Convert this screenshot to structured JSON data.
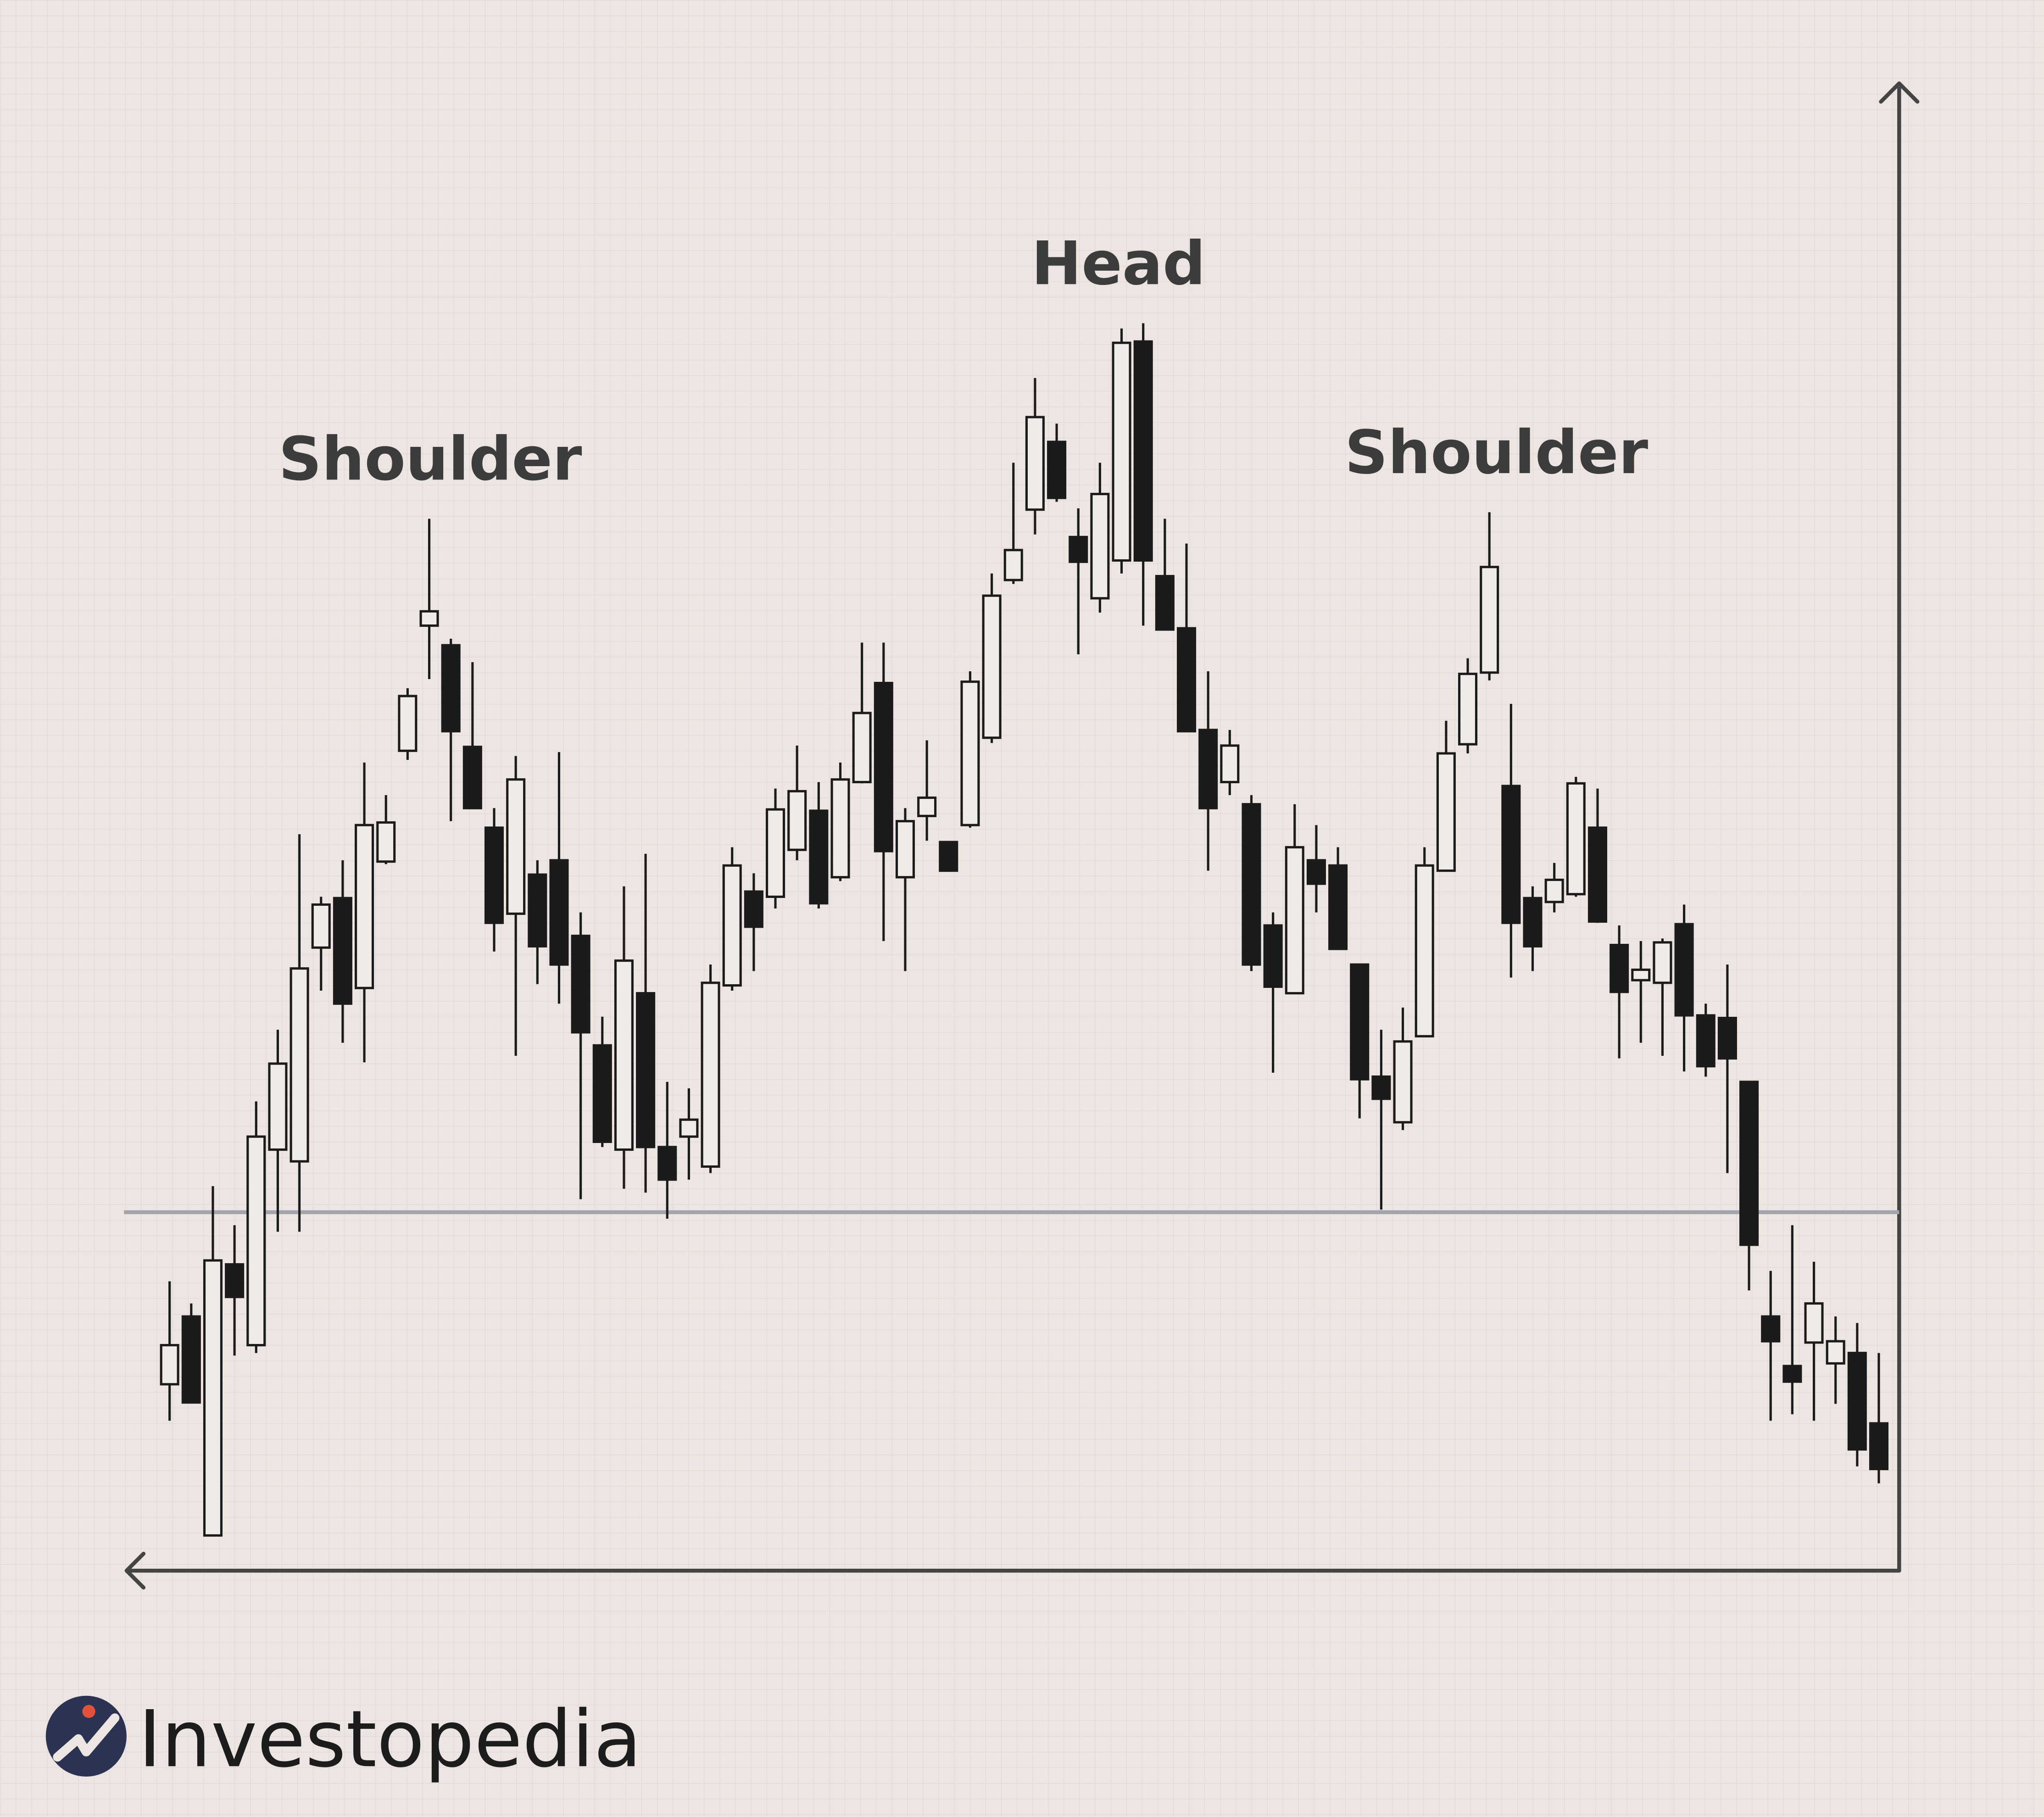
{
  "chart_data": {
    "type": "candlestick",
    "annotations": [
      "Shoulder",
      "Head",
      "Shoulder"
    ],
    "logo": "Investopedia",
    "ylim": [
      0,
      114
    ],
    "neckline": 27.5,
    "up_color": "#f1ebe8",
    "down_color": "#1b1b1b",
    "neckline_color": "#a2a5ae",
    "open": [
      14.3,
      19.5,
      2.7,
      23.5,
      17.3,
      32.3,
      31.4,
      47.8,
      51.6,
      44.7,
      54.4,
      62.9,
      72.5,
      71.0,
      63.2,
      57.0,
      50.4,
      53.4,
      54.5,
      48.7,
      40.3,
      32.3,
      44.3,
      32.5,
      33.3,
      31.0,
      44.9,
      52.1,
      51.7,
      55.3,
      58.3,
      53.2,
      60.5,
      68.1,
      53.2,
      57.9,
      55.9,
      57.2,
      63.9,
      76.0,
      81.4,
      86.6,
      79.3,
      74.6,
      77.5,
      94.3,
      76.3,
      72.3,
      64.5,
      60.5,
      58.8,
      49.5,
      44.3,
      54.5,
      54.1,
      46.5,
      37.9,
      34.4,
      41.0,
      53.7,
      63.4,
      68.9,
      60.2,
      51.6,
      51.3,
      51.9,
      57.0,
      48.0,
      45.3,
      45.1,
      49.6,
      42.6,
      42.4,
      37.5,
      19.5,
      15.7,
      17.5,
      15.9,
      16.7,
      11.3
    ],
    "high": [
      22.2,
      20.5,
      29.5,
      26.5,
      36.0,
      41.5,
      56.5,
      51.7,
      54.5,
      62.0,
      59.5,
      67.7,
      80.7,
      71.5,
      69.7,
      58.5,
      62.5,
      54.5,
      62.8,
      50.5,
      42.5,
      52.5,
      55.0,
      37.5,
      37.0,
      46.5,
      55.5,
      53.5,
      60.0,
      63.3,
      60.5,
      62.0,
      71.2,
      71.2,
      58.5,
      63.7,
      55.9,
      69.0,
      76.5,
      85.0,
      91.5,
      88.0,
      81.5,
      85.0,
      95.3,
      95.7,
      80.7,
      78.8,
      69.0,
      64.5,
      59.5,
      50.5,
      58.8,
      57.2,
      55.5,
      46.5,
      41.5,
      43.2,
      55.5,
      65.2,
      70.0,
      81.2,
      66.5,
      52.5,
      54.3,
      60.9,
      60.0,
      49.5,
      48.3,
      48.5,
      51.1,
      43.5,
      46.5,
      37.5,
      23.0,
      26.5,
      23.7,
      19.5,
      19.0,
      16.7
    ],
    "low": [
      11.5,
      12.9,
      2.7,
      16.5,
      16.7,
      26.0,
      26.0,
      44.5,
      40.5,
      39.0,
      54.2,
      62.2,
      68.4,
      57.5,
      58.5,
      47.5,
      39.5,
      45.0,
      43.5,
      28.5,
      32.5,
      29.3,
      29.0,
      27.0,
      30.0,
      30.5,
      44.5,
      46.0,
      50.8,
      54.5,
      50.8,
      52.9,
      60.4,
      48.3,
      46.0,
      56.0,
      53.7,
      57.0,
      63.5,
      75.7,
      79.5,
      82.0,
      70.3,
      73.5,
      76.5,
      72.5,
      72.2,
      64.4,
      53.7,
      59.5,
      46.0,
      38.2,
      44.3,
      50.5,
      47.7,
      34.7,
      27.7,
      33.8,
      41.0,
      53.7,
      62.7,
      68.3,
      45.5,
      46.0,
      50.5,
      51.7,
      49.7,
      39.3,
      40.5,
      39.5,
      38.3,
      37.9,
      30.5,
      21.5,
      11.5,
      12.0,
      11.5,
      12.8,
      8.0,
      6.7
    ],
    "close": [
      17.3,
      12.9,
      23.8,
      21.0,
      33.3,
      38.9,
      46.2,
      51.1,
      43.5,
      57.2,
      57.4,
      67.1,
      73.6,
      64.4,
      58.5,
      49.7,
      60.7,
      47.9,
      46.5,
      41.3,
      32.9,
      46.8,
      32.5,
      30.0,
      34.6,
      45.1,
      54.1,
      49.4,
      58.4,
      59.8,
      51.2,
      60.7,
      65.8,
      55.2,
      57.5,
      59.3,
      53.7,
      68.2,
      74.8,
      78.3,
      88.5,
      82.3,
      77.4,
      82.6,
      94.2,
      77.5,
      72.2,
      64.4,
      58.5,
      63.3,
      46.5,
      44.8,
      55.5,
      52.7,
      47.7,
      37.7,
      36.2,
      40.6,
      54.1,
      62.7,
      68.8,
      77.0,
      49.7,
      47.9,
      53.0,
      60.4,
      49.8,
      44.4,
      46.1,
      48.2,
      42.6,
      38.7,
      39.3,
      25.0,
      17.6,
      14.5,
      20.5,
      17.6,
      9.3,
      7.8
    ]
  }
}
